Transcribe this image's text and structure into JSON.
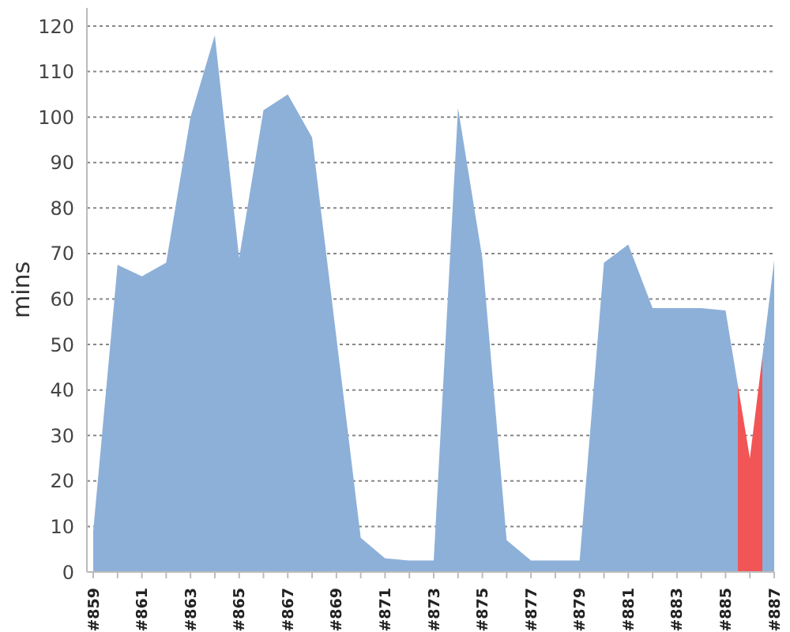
{
  "chart_data": {
    "type": "area",
    "ylabel": "mins",
    "categories": [
      "#859",
      null,
      "#861",
      null,
      "#863",
      null,
      "#865",
      null,
      "#867",
      null,
      "#869",
      null,
      "#871",
      null,
      "#873",
      null,
      "#875",
      null,
      "#877",
      null,
      "#879",
      null,
      "#881",
      null,
      "#883",
      null,
      "#885",
      null,
      "#887"
    ],
    "values": [
      9,
      67.5,
      65,
      68,
      100,
      118,
      69,
      101.5,
      105,
      95.5,
      51.5,
      7.5,
      3,
      2.5,
      2.5,
      102,
      69,
      7,
      2.5,
      2.5,
      2.5,
      68,
      72,
      58,
      58,
      58,
      57.5,
      25,
      68.5
    ],
    "colors": [
      "#8db0d8",
      "#8db0d8",
      "#8db0d8",
      "#8db0d8",
      "#8db0d8",
      "#8db0d8",
      "#8db0d8",
      "#8db0d8",
      "#8db0d8",
      "#8db0d8",
      "#8db0d8",
      "#8db0d8",
      "#8db0d8",
      "#8db0d8",
      "#8db0d8",
      "#8db0d8",
      "#8db0d8",
      "#8db0d8",
      "#8db0d8",
      "#8db0d8",
      "#8db0d8",
      "#8db0d8",
      "#8db0d8",
      "#8db0d8",
      "#8db0d8",
      "#8db0d8",
      "#8db0d8",
      "#f25555",
      "#8db0d8"
    ],
    "ylim": [
      0,
      124
    ],
    "yticks": [
      0,
      10,
      20,
      30,
      40,
      50,
      60,
      70,
      80,
      90,
      100,
      110,
      120
    ],
    "grid": "y"
  }
}
